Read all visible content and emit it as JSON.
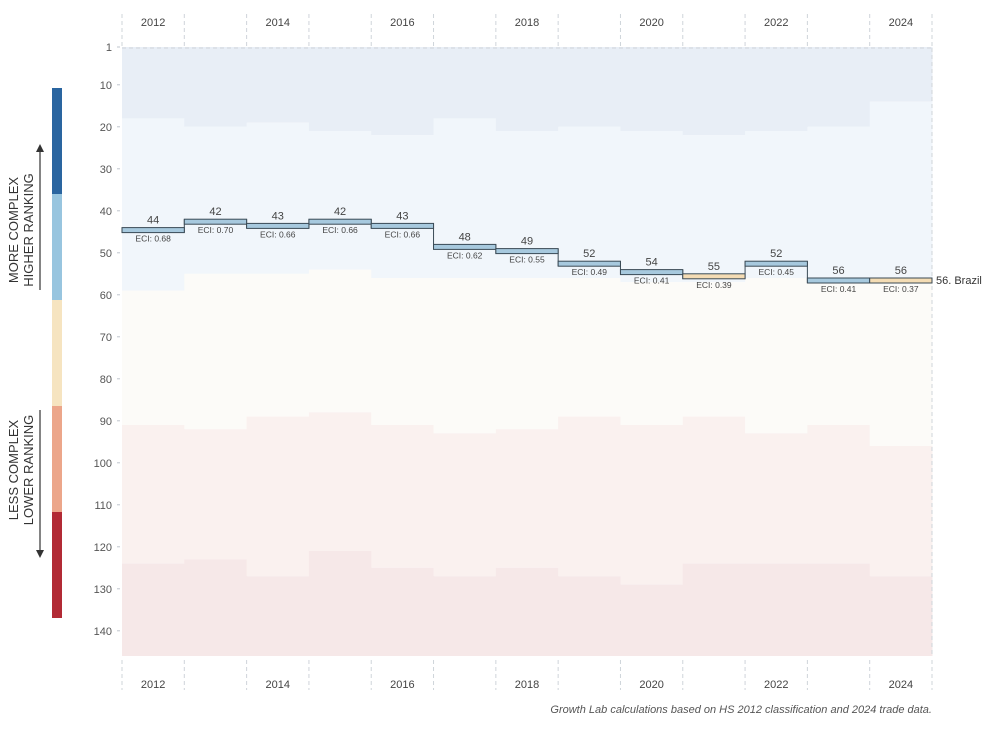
{
  "chart_data": {
    "type": "step-line",
    "country": "Brazil",
    "end_label": "56. Brazil",
    "x_label_years": [
      2012,
      2014,
      2016,
      2018,
      2020,
      2022,
      2024
    ],
    "y_ticks": [
      1,
      10,
      20,
      30,
      40,
      50,
      60,
      70,
      80,
      90,
      100,
      110,
      120,
      130,
      140
    ],
    "ylim": [
      1,
      146
    ],
    "axis_titles": {
      "upper_line1": "MORE COMPLEX",
      "upper_line2": "HIGHER RANKING",
      "lower_line1": "LESS COMPLEX",
      "lower_line2": "LOWER RANKING"
    },
    "points": [
      {
        "year": 2012,
        "rank": 44,
        "eci": "ECI: 0.68",
        "trend": "up"
      },
      {
        "year": 2013,
        "rank": 42,
        "eci": "ECI: 0.70",
        "trend": "up"
      },
      {
        "year": 2014,
        "rank": 43,
        "eci": "ECI: 0.66",
        "trend": "up"
      },
      {
        "year": 2015,
        "rank": 42,
        "eci": "ECI: 0.66",
        "trend": "up"
      },
      {
        "year": 2016,
        "rank": 43,
        "eci": "ECI: 0.66",
        "trend": "up"
      },
      {
        "year": 2017,
        "rank": 48,
        "eci": "ECI: 0.62",
        "trend": "up"
      },
      {
        "year": 2018,
        "rank": 49,
        "eci": "ECI: 0.55",
        "trend": "up"
      },
      {
        "year": 2019,
        "rank": 52,
        "eci": "ECI: 0.49",
        "trend": "up"
      },
      {
        "year": 2020,
        "rank": 54,
        "eci": "ECI: 0.41",
        "trend": "up"
      },
      {
        "year": 2021,
        "rank": 55,
        "eci": "ECI: 0.39",
        "trend": "down"
      },
      {
        "year": 2022,
        "rank": 52,
        "eci": "ECI: 0.45",
        "trend": "up"
      },
      {
        "year": 2023,
        "rank": 56,
        "eci": "ECI: 0.41",
        "trend": "up"
      },
      {
        "year": 2024,
        "rank": 56,
        "eci": "ECI: 0.37",
        "trend": "down"
      }
    ],
    "band_boundaries": {
      "comment": "rank thresholds per year separating background shaded groups",
      "b1": [
        18,
        20,
        19,
        21,
        22,
        18,
        21,
        20,
        21,
        22,
        21,
        20,
        14
      ],
      "b2": [
        59,
        55,
        55,
        54,
        56,
        56,
        56,
        56,
        57,
        57,
        56,
        56,
        57
      ],
      "b3": [
        91,
        92,
        89,
        88,
        91,
        93,
        92,
        89,
        91,
        89,
        93,
        91,
        96
      ],
      "b4": [
        124,
        123,
        127,
        121,
        125,
        127,
        125,
        127,
        129,
        124,
        124,
        124,
        127
      ]
    }
  },
  "colors": {
    "up_fill": "#a7c9de",
    "down_fill": "#f4dcb4",
    "bar_outline": "#3a4a55",
    "legend_bar": [
      "#2a65a0",
      "#98c5df",
      "#f6e4c0",
      "#eca68a",
      "#b22a35"
    ],
    "band_fill": [
      "#e8eef6",
      "#f1f6fb",
      "#fcfbf8",
      "#faf1ef",
      "#f6e8e8"
    ]
  },
  "footnote": "Growth Lab calculations based on HS 2012 classification and 2024 trade data."
}
